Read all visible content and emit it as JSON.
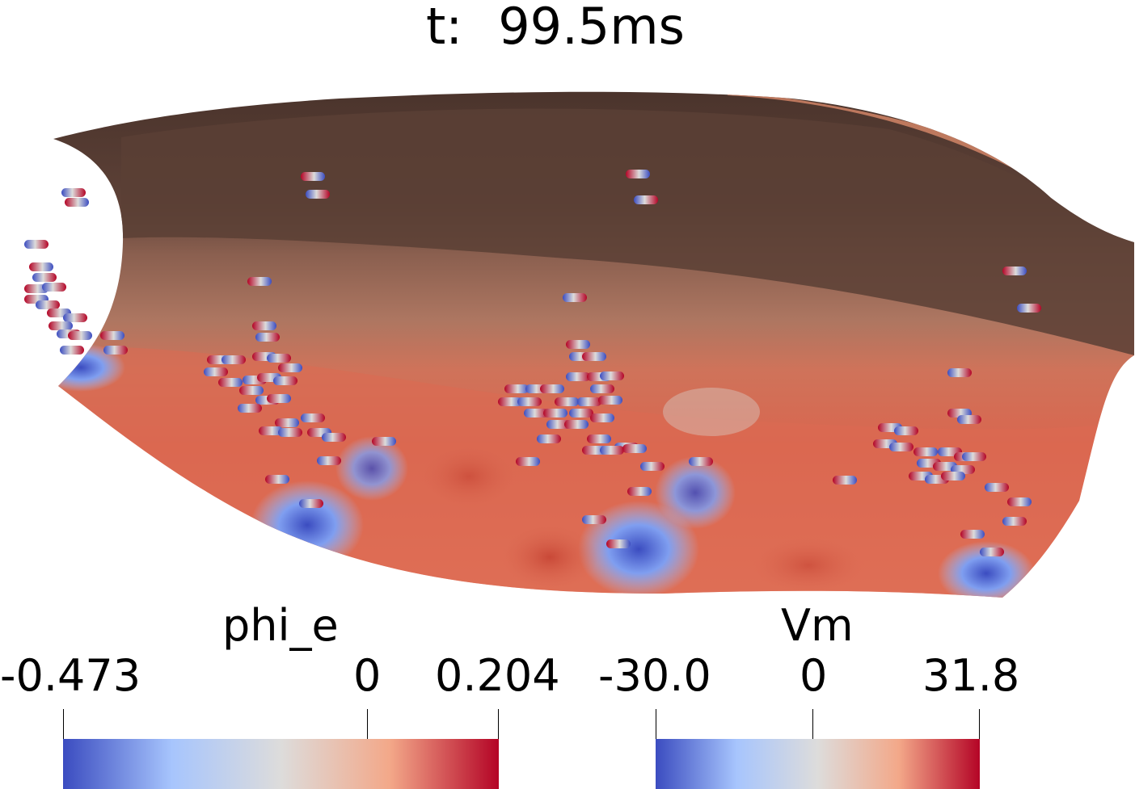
{
  "time": {
    "label": "t:",
    "value": "99.5ms"
  },
  "colorbars": [
    {
      "title": "phi_e",
      "ticks": [
        "-0.473",
        "0",
        "0.204"
      ],
      "gradient": [
        "#3b4cc0",
        "#a7c5fd",
        "#dddcdb",
        "#f3a889",
        "#b40426"
      ]
    },
    {
      "title": "Vm",
      "ticks": [
        "-30.0",
        "0",
        "31.8"
      ],
      "gradient": [
        "#3b4cc0",
        "#a7c5fd",
        "#dddcdb",
        "#f3a889",
        "#b40426"
      ]
    }
  ],
  "colors": {
    "surface_dark": "#5a3f36",
    "surface_mid": "#a77360",
    "surface_warm": "#d9735a",
    "cold": "#3b4cc0",
    "hot": "#b40426"
  }
}
